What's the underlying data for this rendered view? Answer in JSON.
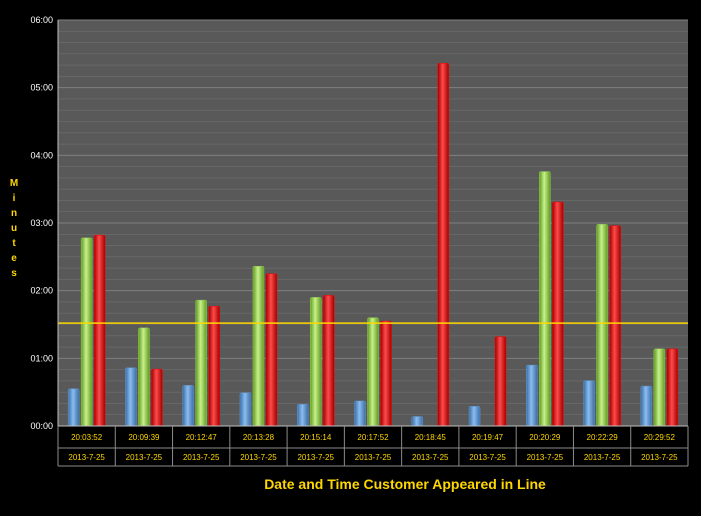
{
  "chart_data": {
    "type": "bar",
    "title": "",
    "xlabel": "Date and Time Customer Appeared in Line",
    "ylabel": "Minutes",
    "y_unit": "minutes",
    "ylim": [
      0,
      6
    ],
    "y_ticks": [
      {
        "value": 0,
        "label": "00:00"
      },
      {
        "value": 1,
        "label": "01:00"
      },
      {
        "value": 2,
        "label": "02:00"
      },
      {
        "value": 3,
        "label": "03:00"
      },
      {
        "value": 4,
        "label": "04:00"
      },
      {
        "value": 5,
        "label": "05:00"
      },
      {
        "value": 6,
        "label": "06:00"
      }
    ],
    "grid": true,
    "legend": "none",
    "categories": [
      {
        "time": "20:03:52",
        "date": "2013-7-25"
      },
      {
        "time": "20:09:39",
        "date": "2013-7-25"
      },
      {
        "time": "20:12:47",
        "date": "2013-7-25"
      },
      {
        "time": "20:13:28",
        "date": "2013-7-25"
      },
      {
        "time": "20:15:14",
        "date": "2013-7-25"
      },
      {
        "time": "20:17:52",
        "date": "2013-7-25"
      },
      {
        "time": "20:18:45",
        "date": "2013-7-25"
      },
      {
        "time": "20:19:47",
        "date": "2013-7-25"
      },
      {
        "time": "20:20:29",
        "date": "2013-7-25"
      },
      {
        "time": "20:22:29",
        "date": "2013-7-25"
      },
      {
        "time": "20:29:52",
        "date": "2013-7-25"
      }
    ],
    "series": [
      {
        "color": "#5b9bd5",
        "values": [
          0.55,
          0.86,
          0.6,
          0.49,
          0.32,
          0.37,
          0.14,
          0.29,
          0.9,
          0.67,
          0.59
        ]
      },
      {
        "color": "#92d050",
        "values": [
          2.78,
          1.45,
          1.86,
          2.36,
          1.9,
          1.6,
          0,
          0,
          3.76,
          2.98,
          1.14
        ]
      },
      {
        "color": "#ff0000",
        "values": [
          2.82,
          0.84,
          1.77,
          2.25,
          1.93,
          1.55,
          5.36,
          1.32,
          3.31,
          2.96,
          1.14
        ]
      }
    ],
    "reference_line": {
      "value": 1.52,
      "color": "#ffd700"
    },
    "colors": {
      "background": "#000000",
      "plot_area": "#595959",
      "grid": "#7f7f7f",
      "label_text": "#ffd700",
      "tick_text": "#ffffff"
    }
  }
}
